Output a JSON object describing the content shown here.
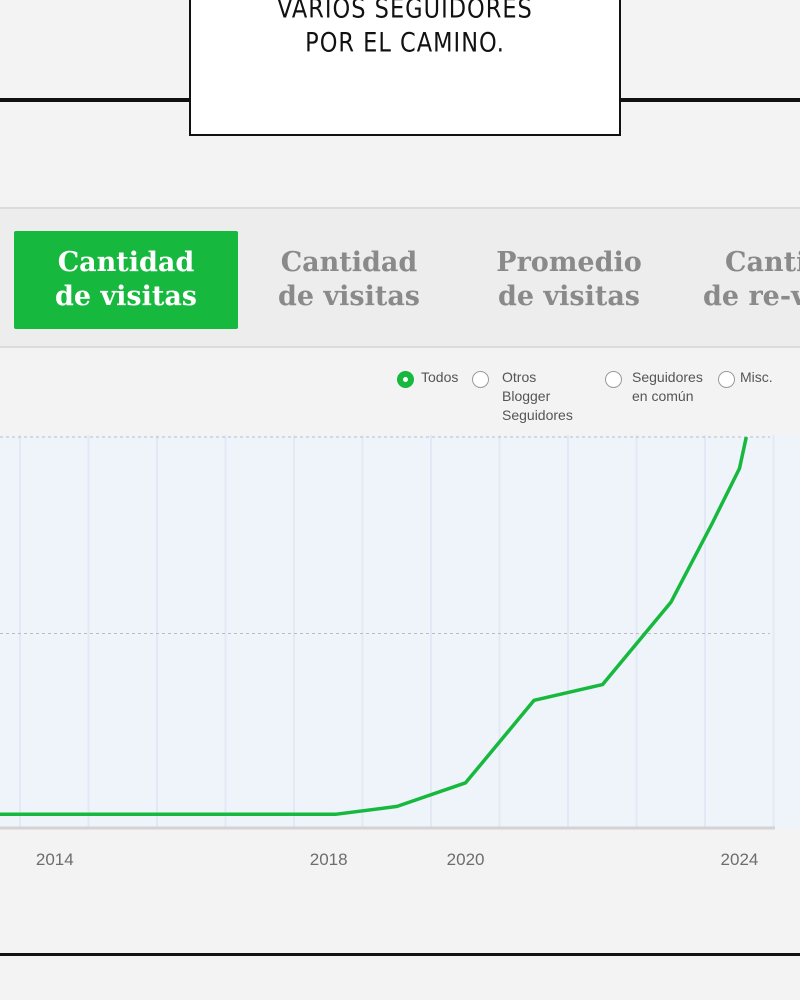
{
  "caption": {
    "line1": "VARIOS SEGUIDORES",
    "line2": "POR EL CAMINO."
  },
  "tabs": [
    {
      "line1": "Cantidad",
      "line2": "de visitas",
      "active": true
    },
    {
      "line1": "Cantidad",
      "line2": "de visitas",
      "active": false
    },
    {
      "line1": "Promedio",
      "line2": "de visitas",
      "active": false
    },
    {
      "line1": "Canti",
      "line2": "de re-v",
      "active": false
    }
  ],
  "legend": [
    {
      "line1": "Todos",
      "line2": "",
      "checked": true
    },
    {
      "line1": "Otros Blogger",
      "line2": "Seguidores",
      "checked": false
    },
    {
      "line1": "Seguidores",
      "line2": "en común",
      "checked": false
    },
    {
      "line1": "Misc.",
      "line2": "",
      "checked": false
    }
  ],
  "colors": {
    "accent": "#16b93e",
    "plot_bg": "#eef4fa",
    "gridline": "#bdbdbd"
  },
  "chart_data": {
    "type": "line",
    "title": "",
    "xlabel": "",
    "ylabel": "",
    "x_ticks": [
      2014,
      2018,
      2020,
      2024
    ],
    "xlim": [
      2013.2,
      2024.3
    ],
    "ylim": [
      0,
      100
    ],
    "grid": true,
    "series": [
      {
        "x": [
          2013.2,
          2018.1,
          2019.0,
          2020.0,
          2021.0,
          2022.0,
          2023.0,
          2023.6,
          2024.0,
          2024.1
        ],
        "values": [
          4,
          4,
          6,
          12,
          33,
          37,
          58,
          78,
          92,
          100
        ]
      }
    ]
  }
}
